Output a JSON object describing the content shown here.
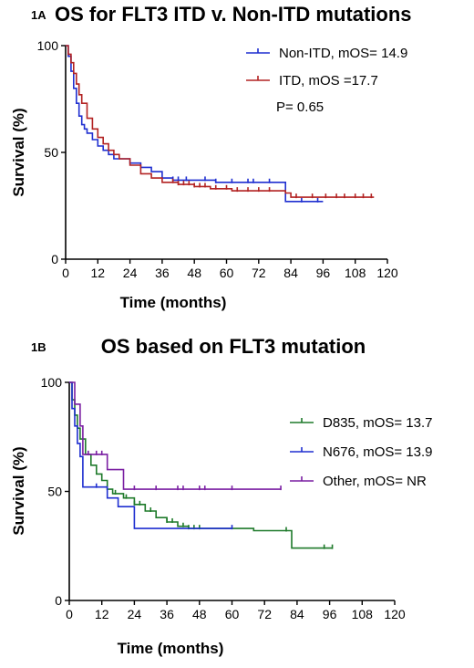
{
  "chart_data": [
    {
      "type": "line",
      "panel_label": "1A",
      "title": "OS for FLT3 ITD v. Non-ITD mutations",
      "xlabel": "Time (months)",
      "ylabel": "Survival (%)",
      "xlim": [
        0,
        120
      ],
      "ylim": [
        0,
        100
      ],
      "x_ticks": [
        "0",
        "12",
        "24",
        "36",
        "48",
        "60",
        "72",
        "84",
        "96",
        "108",
        "120"
      ],
      "y_ticks": [
        "0",
        "50",
        "100"
      ],
      "legend_position": "top-right",
      "annotation": "P= 0.65",
      "series": [
        {
          "name": "Non-ITD, mOS= 14.9",
          "color": "#1f2fd0",
          "points": [
            [
              0,
              100
            ],
            [
              1,
              95
            ],
            [
              2,
              88
            ],
            [
              3,
              80
            ],
            [
              4,
              73
            ],
            [
              5,
              67
            ],
            [
              6,
              63
            ],
            [
              7,
              61
            ],
            [
              8,
              59
            ],
            [
              10,
              56
            ],
            [
              12,
              53
            ],
            [
              14,
              51
            ],
            [
              16,
              49
            ],
            [
              18,
              47
            ],
            [
              20,
              47
            ],
            [
              24,
              45
            ],
            [
              28,
              43
            ],
            [
              32,
              41
            ],
            [
              36,
              38
            ],
            [
              40,
              37
            ],
            [
              44,
              37
            ],
            [
              50,
              37
            ],
            [
              56,
              36
            ],
            [
              62,
              36
            ],
            [
              68,
              36
            ],
            [
              76,
              36
            ],
            [
              80,
              36
            ],
            [
              82,
              27
            ],
            [
              90,
              27
            ],
            [
              96,
              27
            ]
          ],
          "censor_x": [
            40,
            42,
            45,
            52,
            56,
            62,
            68,
            70,
            76,
            88,
            94
          ]
        },
        {
          "name": "ITD, mOS =17.7",
          "color": "#b22222",
          "points": [
            [
              0,
              100
            ],
            [
              1,
              96
            ],
            [
              2,
              92
            ],
            [
              3,
              87
            ],
            [
              4,
              82
            ],
            [
              5,
              77
            ],
            [
              6,
              73
            ],
            [
              8,
              66
            ],
            [
              10,
              61
            ],
            [
              12,
              57
            ],
            [
              14,
              54
            ],
            [
              16,
              51
            ],
            [
              18,
              49
            ],
            [
              20,
              47
            ],
            [
              24,
              44
            ],
            [
              28,
              40
            ],
            [
              32,
              38
            ],
            [
              36,
              36
            ],
            [
              42,
              35
            ],
            [
              48,
              34
            ],
            [
              54,
              33
            ],
            [
              62,
              32
            ],
            [
              70,
              32
            ],
            [
              78,
              32
            ],
            [
              82,
              31
            ],
            [
              84,
              29
            ],
            [
              90,
              29
            ],
            [
              96,
              29
            ],
            [
              108,
              29
            ],
            [
              115,
              29
            ]
          ],
          "censor_x": [
            40,
            42,
            44,
            46,
            48,
            50,
            52,
            56,
            60,
            64,
            68,
            72,
            76,
            86,
            92,
            97,
            101,
            104,
            108,
            111,
            114
          ]
        }
      ]
    },
    {
      "type": "line",
      "panel_label": "1B",
      "title": "OS based on FLT3 mutation",
      "xlabel": "Time (months)",
      "ylabel": "Survival (%)",
      "xlim": [
        0,
        120
      ],
      "ylim": [
        0,
        100
      ],
      "x_ticks": [
        "0",
        "12",
        "24",
        "36",
        "48",
        "60",
        "72",
        "84",
        "96",
        "108",
        "120"
      ],
      "y_ticks": [
        "0",
        "50",
        "100"
      ],
      "legend_position": "top-right",
      "series": [
        {
          "name": "D835, mOS= 13.7",
          "color": "#1e7a2a",
          "points": [
            [
              0,
              100
            ],
            [
              1,
              92
            ],
            [
              2,
              85
            ],
            [
              3,
              79
            ],
            [
              4,
              74
            ],
            [
              6,
              67
            ],
            [
              8,
              62
            ],
            [
              10,
              58
            ],
            [
              12,
              55
            ],
            [
              14,
              51
            ],
            [
              16,
              49
            ],
            [
              20,
              47
            ],
            [
              24,
              44
            ],
            [
              28,
              41
            ],
            [
              32,
              38
            ],
            [
              36,
              36
            ],
            [
              40,
              34
            ],
            [
              44,
              33
            ],
            [
              52,
              33
            ],
            [
              60,
              33
            ],
            [
              68,
              32
            ],
            [
              76,
              32
            ],
            [
              80,
              32
            ],
            [
              82,
              24
            ],
            [
              90,
              24
            ],
            [
              97,
              24
            ]
          ],
          "censor_x": [
            14,
            17,
            21,
            24,
            26,
            30,
            36,
            38,
            42,
            44,
            46,
            48,
            80,
            94,
            97
          ]
        },
        {
          "name": "N676, mOS= 13.9",
          "color": "#1f2fd0",
          "points": [
            [
              0,
              100
            ],
            [
              1,
              88
            ],
            [
              2,
              80
            ],
            [
              3,
              72
            ],
            [
              4,
              66
            ],
            [
              5,
              52
            ],
            [
              8,
              52
            ],
            [
              10,
              52
            ],
            [
              12,
              52
            ],
            [
              14,
              47
            ],
            [
              18,
              43
            ],
            [
              22,
              43
            ],
            [
              24,
              33
            ],
            [
              36,
              33
            ],
            [
              48,
              33
            ],
            [
              60,
              33
            ]
          ],
          "censor_x": [
            10,
            60
          ]
        },
        {
          "name": "Other, mOS= NR",
          "color": "#7a1fa2",
          "points": [
            [
              0,
              100
            ],
            [
              2,
              90
            ],
            [
              4,
              80
            ],
            [
              5,
              67
            ],
            [
              8,
              67
            ],
            [
              12,
              67
            ],
            [
              14,
              60
            ],
            [
              18,
              60
            ],
            [
              20,
              51
            ],
            [
              30,
              51
            ],
            [
              40,
              51
            ],
            [
              50,
              51
            ],
            [
              60,
              51
            ],
            [
              70,
              51
            ],
            [
              78,
              51
            ]
          ],
          "censor_x": [
            7,
            10,
            12,
            24,
            32,
            40,
            42,
            48,
            50,
            60,
            78
          ]
        }
      ]
    }
  ]
}
